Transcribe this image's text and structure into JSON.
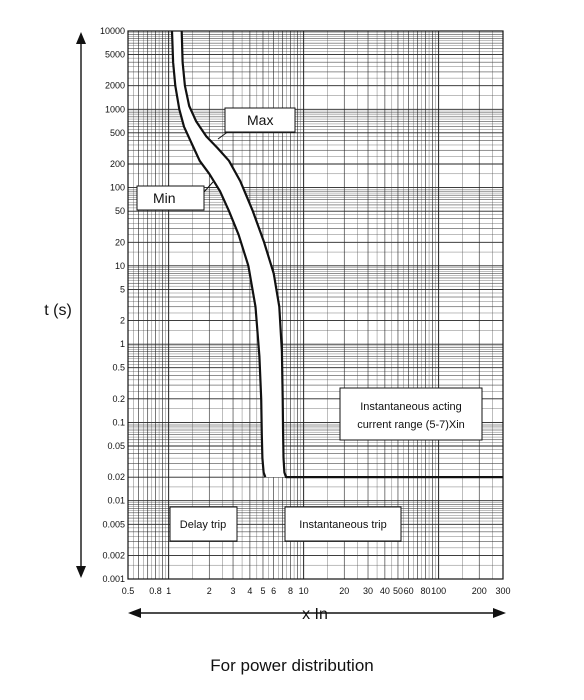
{
  "chart_data": {
    "type": "line",
    "title": "",
    "xlabel": "x In",
    "ylabel": "t (s)",
    "x_scale": "log",
    "y_scale": "log",
    "xlim": [
      0.5,
      300
    ],
    "ylim": [
      0.001,
      10000
    ],
    "grid": true,
    "x_ticks": [
      {
        "value": 0.5,
        "label": "0.5"
      },
      {
        "value": 0.8,
        "label": "0.8"
      },
      {
        "value": 1,
        "label": "1"
      },
      {
        "value": 2,
        "label": "2"
      },
      {
        "value": 3,
        "label": "3"
      },
      {
        "value": 4,
        "label": "4"
      },
      {
        "value": 5,
        "label": "5"
      },
      {
        "value": 6,
        "label": "6"
      },
      {
        "value": 8,
        "label": "8"
      },
      {
        "value": 10,
        "label": "10"
      },
      {
        "value": 20,
        "label": "20"
      },
      {
        "value": 30,
        "label": "30"
      },
      {
        "value": 40,
        "label": "40"
      },
      {
        "value": 50,
        "label": "50"
      },
      {
        "value": 60,
        "label": "60"
      },
      {
        "value": 80,
        "label": "80"
      },
      {
        "value": 100,
        "label": "100"
      },
      {
        "value": 200,
        "label": "200"
      },
      {
        "value": 300,
        "label": "300"
      }
    ],
    "y_ticks": [
      {
        "value": 10000,
        "label": "10000"
      },
      {
        "value": 5000,
        "label": "5000"
      },
      {
        "value": 2000,
        "label": "2000"
      },
      {
        "value": 1000,
        "label": "1000"
      },
      {
        "value": 500,
        "label": "500"
      },
      {
        "value": 200,
        "label": "200"
      },
      {
        "value": 100,
        "label": "100"
      },
      {
        "value": 50,
        "label": "50"
      },
      {
        "value": 20,
        "label": "20"
      },
      {
        "value": 10,
        "label": "10"
      },
      {
        "value": 5,
        "label": "5"
      },
      {
        "value": 2,
        "label": "2"
      },
      {
        "value": 1,
        "label": "1"
      },
      {
        "value": 0.5,
        "label": "0.5"
      },
      {
        "value": 0.2,
        "label": "0.2"
      },
      {
        "value": 0.1,
        "label": "0.1"
      },
      {
        "value": 0.05,
        "label": "0.05"
      },
      {
        "value": 0.02,
        "label": "0.02"
      },
      {
        "value": 0.01,
        "label": "0.01"
      },
      {
        "value": 0.005,
        "label": "0.005"
      },
      {
        "value": 0.002,
        "label": "0.002"
      },
      {
        "value": 0.001,
        "label": "0.001"
      }
    ],
    "series": [
      {
        "name": "Min",
        "x": [
          1.06,
          1.08,
          1.12,
          1.2,
          1.3,
          1.5,
          1.7,
          2.0,
          2.4,
          2.8,
          3.3,
          3.9,
          4.4,
          4.7,
          4.85,
          4.9,
          4.95,
          5.05,
          5.2
        ],
        "y": [
          10000,
          4000,
          2000,
          1000,
          600,
          350,
          220,
          150,
          90,
          50,
          25,
          10,
          3,
          0.7,
          0.2,
          0.07,
          0.035,
          0.023,
          0.02
        ]
      },
      {
        "name": "Max",
        "x": [
          1.25,
          1.27,
          1.32,
          1.42,
          1.6,
          1.9,
          2.3,
          2.8,
          3.4,
          4.2,
          5.1,
          6.0,
          6.6,
          6.9,
          7.0,
          7.05,
          7.1,
          7.2,
          7.4,
          8,
          10,
          300
        ],
        "y": [
          10000,
          4000,
          2000,
          1100,
          700,
          450,
          320,
          220,
          120,
          50,
          20,
          8,
          3,
          0.8,
          0.2,
          0.07,
          0.035,
          0.023,
          0.02,
          0.02,
          0.02,
          0.02
        ]
      }
    ],
    "curve_labels": [
      {
        "text": "Max"
      },
      {
        "text": "Min"
      }
    ],
    "annotations": [
      {
        "lines": [
          "Instantaneous acting",
          "current range (5-7)Xin"
        ]
      },
      {
        "lines": [
          "Delay trip"
        ]
      },
      {
        "lines": [
          "Instantaneous trip"
        ]
      }
    ]
  },
  "caption": "For power distribution"
}
